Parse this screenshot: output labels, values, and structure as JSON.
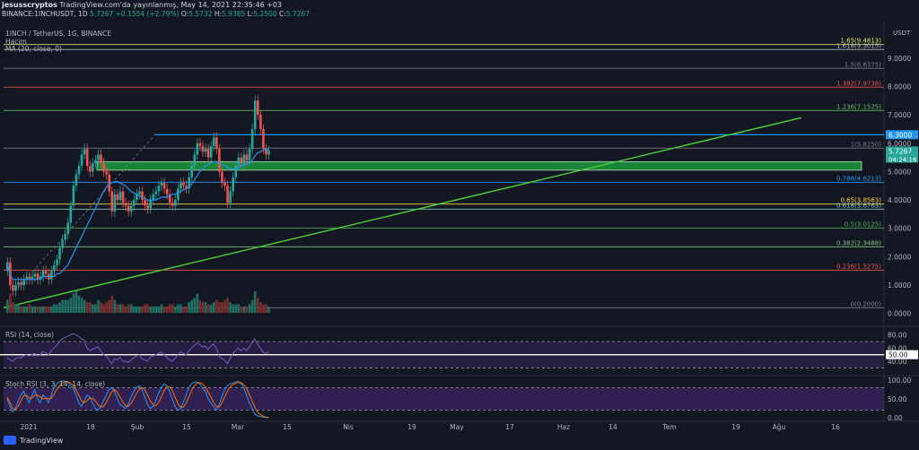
{
  "header": {
    "author": "jesusscryptos",
    "published": "TradingView.com'da yayınlanmış, May 14, 2021 22:35:46 +03",
    "symbol": "BINANCE:1INCHUSDT, 1D",
    "price": "5.7267",
    "change": "+0.1554 (+2.79%)",
    "o_label": "O:",
    "o": "5.5732",
    "h_label": "H:",
    "h": "5.9385",
    "l_label": "L:",
    "l": "5.2500",
    "c_label": "C:",
    "c": "5.7267"
  },
  "legend": {
    "pair": "1INCH / TetherUS, 1G, BINANCE",
    "volume": "Hacim",
    "ma": "MA (20, close, 0)",
    "rsi": "RSI (14, close)",
    "stoch": "Stoch RSI (3, 3, 14, 14, close)"
  },
  "currency": "USDT",
  "branding": "TradingView",
  "colors": {
    "up": "#26a69a",
    "down": "#ef5350",
    "ma": "#2196f3",
    "trend": "#4caf50",
    "zone": "#1b8a3a",
    "rsi": "#7e57c2",
    "stoch_k": "#2196f3",
    "stoch_d": "#ff6d00"
  },
  "chart_data": {
    "type": "candlestick",
    "x_ticks": [
      "2021",
      "18",
      "Şub",
      "15",
      "Mar",
      "15",
      "Nis",
      "19",
      "May",
      "17",
      "Haz",
      "14",
      "Tem",
      "19",
      "Ağu",
      "16"
    ],
    "y_ticks": [
      "9.0000",
      "8.0000",
      "7.0000",
      "6.0000",
      "5.0000",
      "4.0000",
      "3.0000",
      "2.0000",
      "1.0000",
      "0.0000"
    ],
    "ylim": [
      -0.2,
      10.1
    ],
    "fib_levels": [
      {
        "label": "1.65(9.4813)",
        "value": 9.4813
      },
      {
        "label": "1.618(9.3015)",
        "value": 9.3015
      },
      {
        "label": "1.5(8.6375)",
        "value": 8.6375
      },
      {
        "label": "1.382(7.9738)",
        "value": 7.9738
      },
      {
        "label": "1.236(7.1525)",
        "value": 7.1525
      },
      {
        "label": "1(5.8250)",
        "value": 5.825
      },
      {
        "label": "0.786(4.6213)",
        "value": 4.6213
      },
      {
        "label": "0.65(3.8563)",
        "value": 3.8563
      },
      {
        "label": "0.618(3.6763)",
        "value": 3.6763
      },
      {
        "label": "0.5(3.0125)",
        "value": 3.0125
      },
      {
        "label": "0.382(2.3488)",
        "value": 2.3488
      },
      {
        "label": "0.236(1.5275)",
        "value": 1.5275
      },
      {
        "label": "0(0.2000)",
        "value": 0.2
      }
    ],
    "price_badges": [
      {
        "label": "6.3000",
        "value": 6.3
      },
      {
        "label": "5.7267",
        "value": 5.7267,
        "extra": "04:24:16"
      }
    ],
    "resistance": 6.3,
    "support_zone": [
      5.05,
      5.35
    ],
    "trend_line": {
      "from": [
        "2021-01-01",
        0.2
      ],
      "to": [
        "2021-08-05",
        6.9
      ]
    },
    "closes": [
      1.8,
      1.0,
      0.8,
      1.0,
      1.1,
      1.0,
      1.2,
      1.3,
      1.2,
      1.3,
      1.4,
      1.2,
      1.3,
      1.5,
      1.4,
      1.2,
      1.5,
      1.7,
      1.9,
      2.3,
      2.6,
      2.8,
      3.2,
      3.8,
      4.5,
      4.9,
      5.2,
      5.6,
      5.8,
      5.2,
      5.0,
      5.3,
      5.4,
      5.6,
      5.3,
      5.0,
      4.9,
      4.3,
      3.6,
      4.2,
      4.0,
      4.3,
      3.9,
      3.8,
      3.6,
      3.8,
      4.0,
      4.2,
      4.3,
      4.0,
      3.8,
      3.7,
      4.0,
      4.2,
      4.3,
      4.5,
      4.6,
      4.4,
      4.2,
      3.9,
      3.8,
      4.0,
      4.4,
      4.6,
      4.5,
      4.4,
      4.8,
      5.2,
      5.6,
      6.0,
      5.9,
      5.7,
      5.8,
      5.5,
      5.9,
      6.2,
      5.8,
      5.0,
      4.6,
      4.5,
      3.9,
      4.3,
      4.8,
      5.2,
      5.5,
      5.3,
      5.6,
      5.4,
      5.8,
      6.5,
      7.5,
      7.0,
      6.5,
      5.8,
      5.6,
      5.7267
    ],
    "ma20": [
      1.8,
      1.4,
      1.2,
      1.2,
      1.2,
      1.2,
      1.2,
      1.2,
      1.2,
      1.2,
      1.2,
      1.2,
      1.2,
      1.3,
      1.3,
      1.3,
      1.3,
      1.3,
      1.4,
      1.4,
      1.5,
      1.6,
      1.7,
      1.9,
      2.1,
      2.3,
      2.5,
      2.7,
      2.9,
      3.1,
      3.3,
      3.5,
      3.7,
      3.9,
      4.1,
      4.3,
      4.45,
      4.55,
      4.6,
      4.65,
      4.65,
      4.6,
      4.55,
      4.5,
      4.4,
      4.3,
      4.25,
      4.2,
      4.15,
      4.1,
      4.05,
      4.0,
      4.0,
      4.0,
      4.0,
      4.05,
      4.1,
      4.1,
      4.1,
      4.15,
      4.2,
      4.2,
      4.25,
      4.3,
      4.35,
      4.4,
      4.45,
      4.55,
      4.7,
      4.85,
      5.0,
      5.1,
      5.2,
      5.25,
      5.3,
      5.35,
      5.35,
      5.3,
      5.25,
      5.2,
      5.15,
      5.1,
      5.1,
      5.1,
      5.15,
      5.2,
      5.25,
      5.25,
      5.3,
      5.4,
      5.55,
      5.65,
      5.7,
      5.75,
      5.8,
      5.75
    ],
    "volume": [
      0.6,
      0.9,
      0.5,
      0.4,
      0.4,
      0.3,
      0.3,
      0.3,
      0.4,
      0.3,
      0.3,
      0.3,
      0.3,
      0.3,
      0.3,
      0.3,
      0.3,
      0.4,
      0.4,
      0.5,
      0.6,
      0.6,
      0.6,
      0.7,
      0.9,
      1.0,
      0.8,
      0.7,
      0.6,
      0.5,
      0.5,
      0.4,
      0.4,
      0.6,
      0.5,
      0.4,
      0.5,
      0.6,
      0.8,
      0.6,
      0.4,
      0.4,
      0.4,
      0.3,
      0.4,
      0.4,
      0.3,
      0.3,
      0.3,
      0.3,
      0.4,
      0.4,
      0.3,
      0.3,
      0.3,
      0.3,
      0.4,
      0.3,
      0.3,
      0.4,
      0.4,
      0.3,
      0.4,
      0.4,
      0.3,
      0.3,
      0.5,
      0.6,
      0.7,
      0.9,
      0.6,
      0.5,
      0.5,
      0.4,
      0.4,
      0.5,
      0.6,
      0.5,
      0.5,
      0.6,
      0.7,
      0.5,
      0.4,
      0.4,
      0.4,
      0.3,
      0.3,
      0.3,
      0.4,
      0.6,
      1.0,
      0.7,
      0.5,
      0.4,
      0.4,
      0.3
    ],
    "rsi": {
      "ticks": [
        "80.00",
        "60.00",
        "50.00",
        "40.00"
      ],
      "upper": 70,
      "lower": 30,
      "mid": 50,
      "values": [
        45,
        42,
        40,
        44,
        46,
        45,
        48,
        50,
        48,
        50,
        52,
        48,
        50,
        55,
        53,
        50,
        56,
        60,
        64,
        70,
        74,
        76,
        78,
        80,
        82,
        80,
        78,
        74,
        72,
        60,
        56,
        58,
        60,
        62,
        56,
        50,
        48,
        42,
        36,
        44,
        42,
        46,
        40,
        40,
        38,
        42,
        45,
        48,
        50,
        44,
        42,
        40,
        46,
        48,
        50,
        52,
        54,
        50,
        46,
        42,
        40,
        44,
        50,
        54,
        52,
        50,
        56,
        60,
        64,
        68,
        65,
        62,
        63,
        58,
        63,
        66,
        60,
        48,
        44,
        42,
        36,
        44,
        52,
        56,
        60,
        56,
        60,
        56,
        62,
        68,
        74,
        66,
        60,
        54,
        52,
        54
      ]
    },
    "stoch_rsi": {
      "ticks": [
        "100.00",
        "50.00",
        "0.00"
      ],
      "upper": 80,
      "lower": 20,
      "k": [
        50,
        30,
        15,
        25,
        45,
        60,
        70,
        55,
        40,
        60,
        75,
        50,
        40,
        60,
        55,
        40,
        60,
        80,
        90,
        95,
        98,
        97,
        95,
        85,
        80,
        60,
        40,
        30,
        45,
        60,
        55,
        40,
        25,
        20,
        30,
        45,
        60,
        75,
        80,
        70,
        50,
        35,
        30,
        25,
        35,
        55,
        70,
        80,
        85,
        75,
        55,
        35,
        25,
        30,
        45,
        65,
        80,
        90,
        85,
        70,
        50,
        30,
        20,
        25,
        40,
        60,
        80,
        90,
        95,
        95,
        90,
        80,
        70,
        50,
        40,
        30,
        20,
        35,
        55,
        75,
        85,
        90,
        92,
        95,
        96,
        90,
        80,
        60,
        40,
        25,
        10,
        5,
        3,
        2,
        1,
        0
      ],
      "d": [
        55,
        40,
        25,
        22,
        30,
        45,
        58,
        60,
        52,
        52,
        60,
        60,
        55,
        50,
        52,
        50,
        52,
        62,
        75,
        85,
        92,
        96,
        96,
        92,
        86,
        75,
        60,
        45,
        40,
        45,
        52,
        52,
        45,
        35,
        28,
        30,
        40,
        55,
        68,
        75,
        68,
        55,
        42,
        32,
        30,
        38,
        50,
        65,
        75,
        80,
        75,
        60,
        45,
        35,
        32,
        40,
        55,
        72,
        82,
        82,
        72,
        55,
        38,
        28,
        28,
        38,
        55,
        72,
        85,
        92,
        93,
        90,
        82,
        68,
        55,
        42,
        30,
        28,
        38,
        55,
        70,
        82,
        88,
        91,
        94,
        93,
        88,
        78,
        62,
        45,
        28,
        15,
        8,
        4,
        2,
        1
      ]
    }
  }
}
